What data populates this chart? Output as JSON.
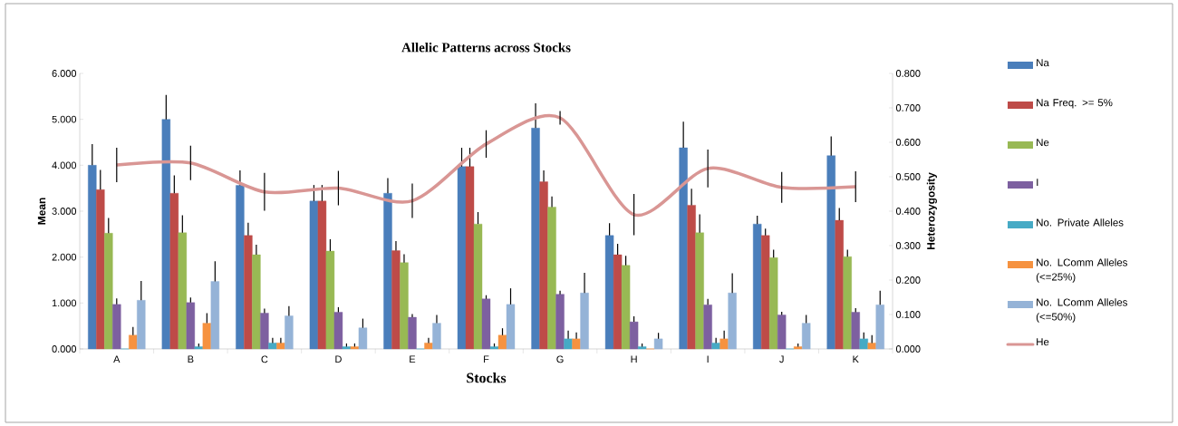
{
  "chart_data": {
    "type": "bar",
    "title": "Allelic Patterns across Stocks",
    "xlabel": "Stocks",
    "ylabel": "Mean",
    "y2label": "Heterozygosity",
    "categories": [
      "A",
      "B",
      "C",
      "D",
      "E",
      "F",
      "G",
      "H",
      "I",
      "J",
      "K"
    ],
    "ylim": [
      0,
      6
    ],
    "yticks": [
      {
        "value": 0,
        "label": "0.000"
      },
      {
        "value": 1,
        "label": "1.000"
      },
      {
        "value": 2,
        "label": "2.000"
      },
      {
        "value": 3,
        "label": "3.000"
      },
      {
        "value": 4,
        "label": "4.000"
      },
      {
        "value": 5,
        "label": "5.000"
      },
      {
        "value": 6,
        "label": "6.000"
      }
    ],
    "y2lim": [
      0,
      0.8
    ],
    "y2ticks": [
      {
        "value": 0,
        "label": "0.000"
      },
      {
        "value": 0.1,
        "label": "0.100"
      },
      {
        "value": 0.2,
        "label": "0.200"
      },
      {
        "value": 0.3,
        "label": "0.300"
      },
      {
        "value": 0.4,
        "label": "0.400"
      },
      {
        "value": 0.5,
        "label": "0.500"
      },
      {
        "value": 0.6,
        "label": "0.600"
      },
      {
        "value": 0.7,
        "label": "0.700"
      },
      {
        "value": 0.8,
        "label": "0.800"
      }
    ],
    "legend": "right",
    "grid": false,
    "marker": "none",
    "series": [
      {
        "name": "Na",
        "color": "#4a7ebb",
        "values": [
          4.0,
          5.0,
          3.56,
          3.22,
          3.39,
          3.97,
          4.81,
          2.47,
          4.38,
          2.72,
          4.21
        ],
        "errors": [
          [
            4.0,
            4.46
          ],
          [
            5.0,
            5.53
          ],
          [
            3.56,
            3.89
          ],
          [
            3.22,
            3.57
          ],
          [
            3.39,
            3.72
          ],
          [
            3.97,
            4.38
          ],
          [
            4.81,
            5.35
          ],
          [
            2.47,
            2.74
          ],
          [
            4.38,
            4.95
          ],
          [
            2.72,
            2.9
          ],
          [
            4.21,
            4.63
          ]
        ]
      },
      {
        "name": "Na Freq. >= 5%",
        "color": "#be4b48",
        "values": [
          3.47,
          3.39,
          2.47,
          3.22,
          2.14,
          3.97,
          3.64,
          2.05,
          3.13,
          2.47,
          2.8
        ],
        "errors": [
          [
            3.47,
            3.9
          ],
          [
            3.39,
            3.78
          ],
          [
            2.47,
            2.75
          ],
          [
            3.22,
            3.57
          ],
          [
            2.14,
            2.35
          ],
          [
            3.97,
            4.38
          ],
          [
            3.64,
            3.89
          ],
          [
            2.05,
            2.29
          ],
          [
            3.13,
            3.49
          ],
          [
            2.47,
            2.62
          ],
          [
            2.8,
            3.07
          ]
        ]
      },
      {
        "name": "Ne",
        "color": "#98b954",
        "values": [
          2.52,
          2.53,
          2.05,
          2.13,
          1.88,
          2.72,
          3.09,
          1.82,
          2.53,
          1.99,
          2.01
        ],
        "errors": [
          [
            2.52,
            2.85
          ],
          [
            2.53,
            2.91
          ],
          [
            2.05,
            2.27
          ],
          [
            2.13,
            2.39
          ],
          [
            1.88,
            2.06
          ],
          [
            2.72,
            2.98
          ],
          [
            3.09,
            3.32
          ],
          [
            1.82,
            2.03
          ],
          [
            2.53,
            2.93
          ],
          [
            1.99,
            2.16
          ],
          [
            2.01,
            2.16
          ]
        ]
      },
      {
        "name": "I",
        "color": "#7d60a0",
        "values": [
          0.97,
          1.01,
          0.78,
          0.8,
          0.69,
          1.09,
          1.19,
          0.59,
          0.96,
          0.74,
          0.8
        ],
        "errors": [
          [
            0.97,
            1.1
          ],
          [
            1.01,
            1.12
          ],
          [
            0.78,
            0.88
          ],
          [
            0.8,
            0.91
          ],
          [
            0.69,
            0.76
          ],
          [
            1.09,
            1.17
          ],
          [
            1.19,
            1.27
          ],
          [
            0.59,
            0.71
          ],
          [
            0.96,
            1.09
          ],
          [
            0.74,
            0.81
          ],
          [
            0.8,
            0.89
          ]
        ]
      },
      {
        "name": "No. Private Alleles",
        "color": "#46aac5",
        "values": [
          0,
          0.05,
          0.13,
          0.05,
          0,
          0.05,
          0.22,
          0.05,
          0.13,
          0,
          0.22
        ],
        "errors": [
          null,
          [
            0.05,
            0.12
          ],
          [
            0.13,
            0.24
          ],
          [
            0.05,
            0.12
          ],
          null,
          [
            0.05,
            0.12
          ],
          [
            0.22,
            0.4
          ],
          [
            0.05,
            0.12
          ],
          [
            0.13,
            0.24
          ],
          null,
          [
            0.22,
            0.36
          ]
        ]
      },
      {
        "name": "No. LComm Alleles (<=25%)",
        "color": "#f69240",
        "values": [
          0.3,
          0.56,
          0.13,
          0.05,
          0.13,
          0.3,
          0.22,
          0,
          0.22,
          0.05,
          0.13
        ],
        "errors": [
          [
            0.3,
            0.48
          ],
          [
            0.56,
            0.78
          ],
          [
            0.13,
            0.24
          ],
          [
            0.05,
            0.12
          ],
          [
            0.13,
            0.24
          ],
          [
            0.3,
            0.45
          ],
          [
            0.22,
            0.36
          ],
          null,
          [
            0.22,
            0.4
          ],
          [
            0.05,
            0.12
          ],
          [
            0.13,
            0.3
          ]
        ]
      },
      {
        "name": "No. LComm Alleles (<=50%)",
        "color": "#95b3d7",
        "values": [
          1.06,
          1.47,
          0.72,
          0.46,
          0.56,
          0.97,
          1.22,
          0.22,
          1.22,
          0.56,
          0.96
        ],
        "errors": [
          [
            1.06,
            1.48
          ],
          [
            1.47,
            1.91
          ],
          [
            0.72,
            0.93
          ],
          [
            0.46,
            0.66
          ],
          [
            0.56,
            0.74
          ],
          [
            0.97,
            1.32
          ],
          [
            1.22,
            1.66
          ],
          [
            0.22,
            0.35
          ],
          [
            1.22,
            1.65
          ],
          [
            0.56,
            0.74
          ],
          [
            0.96,
            1.27
          ]
        ]
      },
      {
        "name": "He",
        "type": "line",
        "axis": "y2",
        "color": "#d99694",
        "values": [
          0.534,
          0.54,
          0.456,
          0.467,
          0.43,
          0.595,
          0.671,
          0.39,
          0.524,
          0.469,
          0.471
        ],
        "errors": [
          0.05,
          0.05,
          0.055,
          0.05,
          0.05,
          0.04,
          0.02,
          0.06,
          0.055,
          0.045,
          0.045
        ]
      }
    ]
  }
}
